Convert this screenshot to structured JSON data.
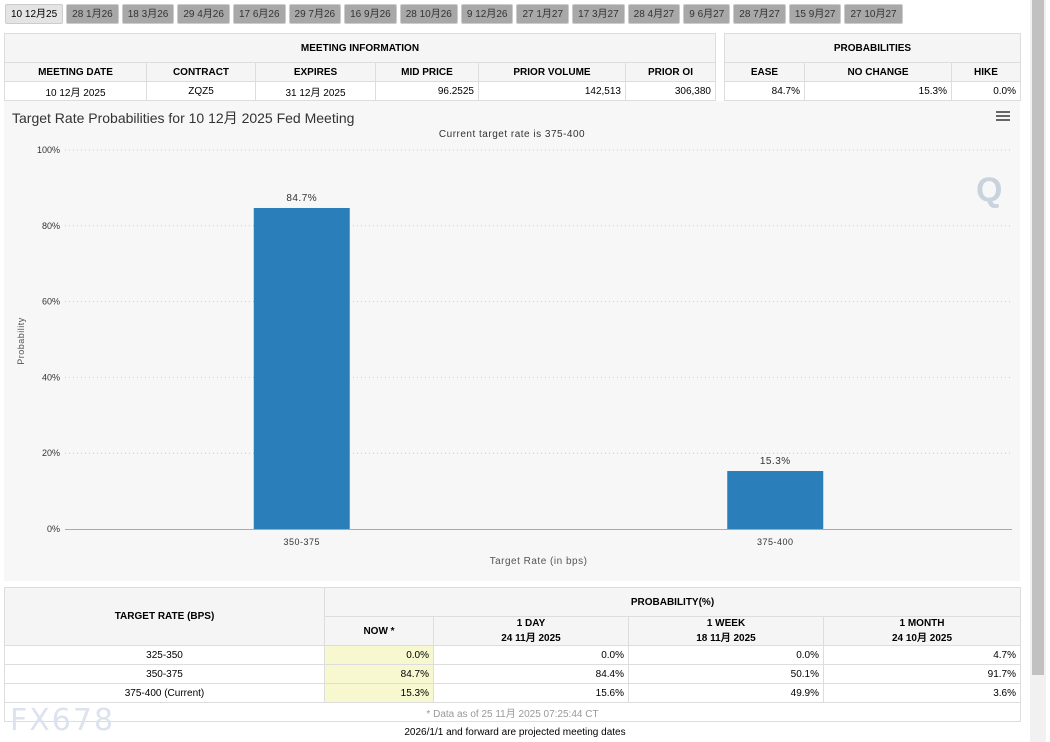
{
  "tabs": [
    "10 12月25",
    "28 1月26",
    "18 3月26",
    "29 4月26",
    "17 6月26",
    "29 7月26",
    "16 9月26",
    "28 10月26",
    "9 12月26",
    "27 1月27",
    "17 3月27",
    "28 4月27",
    "9 6月27",
    "28 7月27",
    "15 9月27",
    "27 10月27"
  ],
  "meeting": {
    "header": "MEETING INFORMATION",
    "cols": [
      "MEETING DATE",
      "CONTRACT",
      "EXPIRES",
      "MID PRICE",
      "PRIOR VOLUME",
      "PRIOR OI"
    ],
    "values": [
      "10 12月 2025",
      "ZQZ5",
      "31 12月 2025",
      "96.2525",
      "142,513",
      "306,380"
    ]
  },
  "probabilities": {
    "header": "PROBABILITIES",
    "cols": [
      "EASE",
      "NO CHANGE",
      "HIKE"
    ],
    "values": [
      "84.7%",
      "15.3%",
      "0.0%"
    ]
  },
  "chart_data": {
    "type": "bar",
    "title": "Target Rate Probabilities for 10 12月 2025 Fed Meeting",
    "subtitle": "Current target rate is 375-400",
    "xlabel": "Target Rate (in bps)",
    "ylabel": "Probability",
    "categories": [
      "350-375",
      "375-400"
    ],
    "values": [
      84.7,
      15.3
    ],
    "data_labels": [
      "84.7%",
      "15.3%"
    ],
    "ylim": [
      0,
      100
    ],
    "yticks": [
      "0%",
      "20%",
      "40%",
      "60%",
      "80%",
      "100%"
    ],
    "grid": true,
    "color": "#2a7fba"
  },
  "bottom": {
    "rate_header": "TARGET RATE (BPS)",
    "prob_header": "PROBABILITY(%)",
    "cols": [
      {
        "l1": "NOW *",
        "l2": ""
      },
      {
        "l1": "1 DAY",
        "l2": "24 11月 2025"
      },
      {
        "l1": "1 WEEK",
        "l2": "18 11月 2025"
      },
      {
        "l1": "1 MONTH",
        "l2": "24 10月 2025"
      }
    ],
    "rows": [
      {
        "rate": "325-350",
        "v": [
          "0.0%",
          "0.0%",
          "0.0%",
          "4.7%"
        ]
      },
      {
        "rate": "350-375",
        "v": [
          "84.7%",
          "84.4%",
          "50.1%",
          "91.7%"
        ]
      },
      {
        "rate": "375-400 (Current)",
        "v": [
          "15.3%",
          "15.6%",
          "49.9%",
          "3.6%"
        ]
      }
    ],
    "note": "* Data as of 25 11月 2025 07:25:44 CT"
  },
  "footer": "2026/1/1 and forward are projected meeting dates",
  "watermark": "FX678"
}
